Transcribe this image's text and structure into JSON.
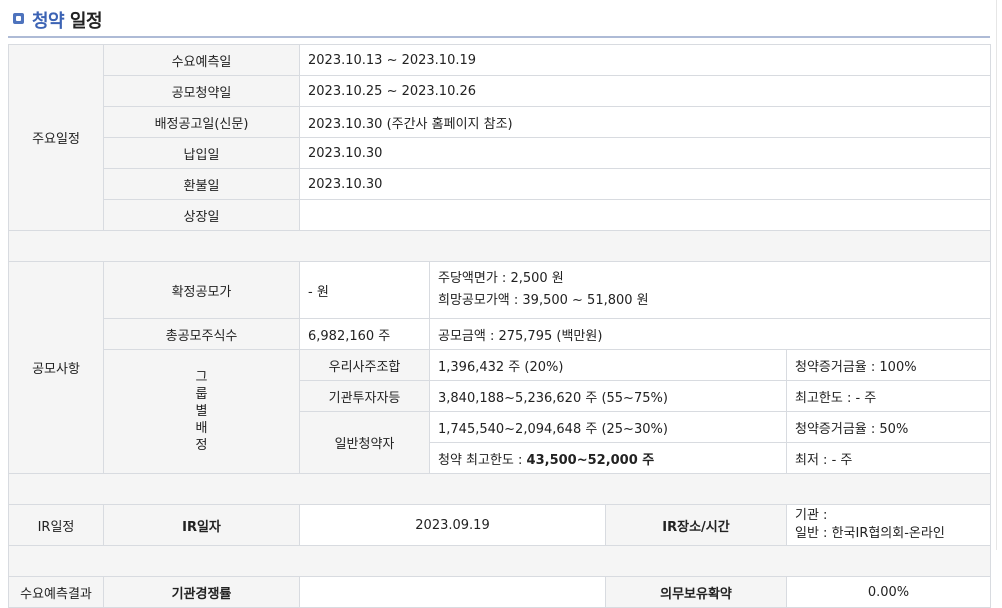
{
  "header": {
    "title_blue": "청약",
    "title_dark": "일정"
  },
  "key_dates": {
    "section": "주요일정",
    "rows": [
      {
        "label": "수요예측일",
        "value": "2023.10.13  ~   2023.10.19"
      },
      {
        "label": "공모청약일",
        "value": "2023.10.25  ~   2023.10.26"
      },
      {
        "label": "배정공고일(신문)",
        "value": "2023.10.30 (주간사 홈페이지 참조)"
      },
      {
        "label": "납입일",
        "value": "2023.10.30"
      },
      {
        "label": "환불일",
        "value": "2023.10.30"
      },
      {
        "label": "상장일",
        "value": ""
      }
    ]
  },
  "offering": {
    "section": "공모사항",
    "confirmed_price_label": "확정공모가",
    "confirmed_price_value": "- 원",
    "par_value": "주당액면가 :  2,500 원",
    "desired_price": "희망공모가액 :  39,500 ~ 51,800 원",
    "total_shares_label": "총공모주식수",
    "total_shares_value": "6,982,160 주",
    "total_amount": "공모금액 : 275,795 (백만원)",
    "group_label": [
      "그",
      "룹",
      "별",
      "배",
      "정"
    ],
    "employee_label": "우리사주조합",
    "employee_value": "1,396,432 주  (20%)",
    "employee_extra": "청약증거금율 : 100%",
    "institution_label": "기관투자자등",
    "institution_value": "3,840,188~5,236,620 주  (55~75%)",
    "institution_extra": "최고한도 :  - 주",
    "retail_label": "일반청약자",
    "retail_value": "1,745,540~2,094,648 주  (25~30%)",
    "retail_extra": "청약증거금율 : 50%",
    "retail_max_prefix": "청약 최고한도 : ",
    "retail_max_value": "43,500~52,000 주",
    "retail_min": "최저 :  - 주"
  },
  "ir": {
    "section": "IR일정",
    "date_label": "IR일자",
    "date_value": "2023.09.19",
    "place_label": "IR장소/시간",
    "place_line1": "기관 :",
    "place_line2": "일반 : 한국IR협의회-온라인"
  },
  "demand": {
    "section": "수요예측결과",
    "rate_label": "기관경쟁률",
    "rate_value": "",
    "lockup_label": "의무보유확약",
    "lockup_value": "0.00%"
  }
}
